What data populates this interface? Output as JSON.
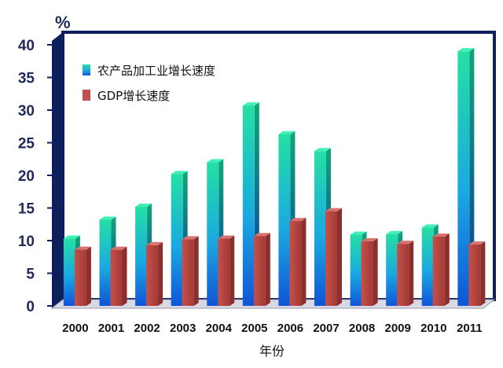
{
  "chart_data": {
    "type": "bar",
    "unit_label": "%",
    "xlabel": "年份",
    "ylabel": "",
    "ylim": [
      0,
      40
    ],
    "yticks": [
      0,
      5,
      10,
      15,
      20,
      25,
      30,
      35,
      40
    ],
    "categories": [
      "2000",
      "2001",
      "2002",
      "2003",
      "2004",
      "2005",
      "2006",
      "2007",
      "2008",
      "2009",
      "2010",
      "2011"
    ],
    "series": [
      {
        "name": "农产品加工业增长速度",
        "color": "#22d3a8",
        "values": [
          10.3,
          13.2,
          15.2,
          20.2,
          22.0,
          30.7,
          26.3,
          23.7,
          10.9,
          11.0,
          12.0,
          39.0
        ]
      },
      {
        "name": "GDP增长速度",
        "color": "#c0504d",
        "values": [
          8.6,
          8.6,
          9.3,
          10.2,
          10.3,
          10.7,
          13.0,
          14.5,
          9.9,
          9.5,
          10.6,
          9.4
        ]
      }
    ],
    "legend_position": "top-left",
    "grid": false
  }
}
